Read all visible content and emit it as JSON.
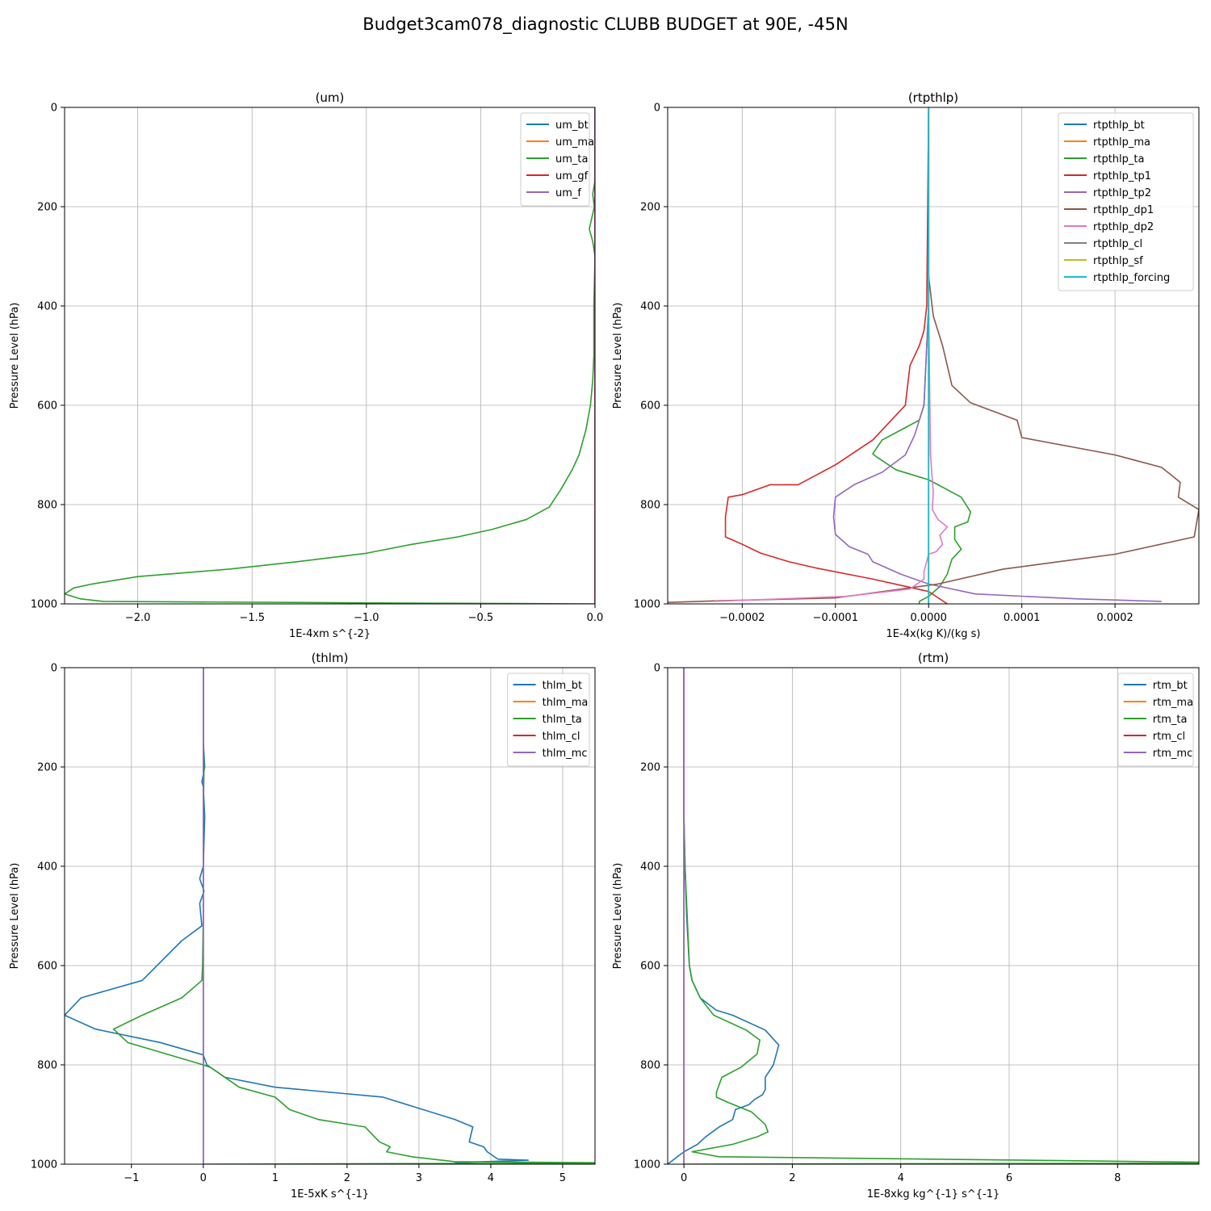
{
  "suptitle": "Budget3cam078_diagnostic CLUBB BUDGET at 90E, -45N",
  "series_colors": [
    "#1f77b4",
    "#ff7f0e",
    "#2ca02c",
    "#d62728",
    "#9467bd",
    "#8c564b",
    "#e377c2",
    "#7f7f7f",
    "#bcbd22",
    "#17becf"
  ],
  "chart_data": [
    {
      "type": "line",
      "title": "(um)",
      "xlabel": "1E-4xm s^{-2}",
      "ylabel": "Pressure Level (hPa)",
      "xlim": [
        -2.32,
        0.0
      ],
      "ylim": [
        1000,
        0
      ],
      "xticks": [
        -2.0,
        -1.5,
        -1.0,
        -0.5,
        0.0
      ],
      "xtick_labels": [
        "−2.0",
        "−1.5",
        "−1.0",
        "−0.5",
        "0.0"
      ],
      "yticks": [
        0,
        200,
        400,
        600,
        800,
        1000
      ],
      "ytick_labels": [
        "0",
        "200",
        "400",
        "600",
        "800",
        "1000"
      ],
      "grid": true,
      "legend_position": "upper-right",
      "series": [
        {
          "name": "um_bt",
          "color": "#1f77b4",
          "x": [
            0,
            0
          ],
          "y": [
            0,
            1000
          ]
        },
        {
          "name": "um_ma",
          "color": "#ff7f0e",
          "x": [
            0,
            0
          ],
          "y": [
            0,
            1000
          ]
        },
        {
          "name": "um_ta",
          "color": "#2ca02c",
          "x": [
            0,
            -0.001,
            -0.01,
            -0.003,
            -0.025,
            -0.01,
            0,
            -0.005,
            -0.005,
            -0.01,
            -0.02,
            -0.04,
            -0.07,
            -0.1,
            -0.15,
            -0.2,
            -0.3,
            -0.45,
            -0.6,
            -0.8,
            -1.0,
            -1.3,
            -1.6,
            -2.0,
            -2.2,
            -2.28,
            -2.32,
            -2.25,
            -2.15,
            -1.0,
            0
          ],
          "y": [
            0,
            150,
            175,
            200,
            245,
            270,
            300,
            400,
            500,
            550,
            600,
            650,
            700,
            730,
            770,
            805,
            830,
            850,
            865,
            880,
            898,
            915,
            930,
            945,
            960,
            968,
            980,
            990,
            995,
            998,
            1000
          ]
        },
        {
          "name": "um_gf",
          "color": "#d62728",
          "x": [
            0,
            0
          ],
          "y": [
            0,
            1000
          ]
        },
        {
          "name": "um_f",
          "color": "#9467bd",
          "x": [
            0,
            0
          ],
          "y": [
            0,
            1000
          ]
        }
      ]
    },
    {
      "type": "line",
      "title": "(rtpthlp)",
      "xlabel": "1E-4x(kg K)/(kg s)",
      "ylabel": "Pressure Level (hPa)",
      "xlim": [
        -0.00028,
        0.00029
      ],
      "ylim": [
        1000,
        0
      ],
      "xticks": [
        -0.0002,
        -0.0001,
        0.0,
        0.0001,
        0.0002
      ],
      "xtick_labels": [
        "−0.0002",
        "−0.0001",
        "0.0000",
        "0.0001",
        "0.0002"
      ],
      "yticks": [
        0,
        200,
        400,
        600,
        800,
        1000
      ],
      "ytick_labels": [
        "0",
        "200",
        "400",
        "600",
        "800",
        "1000"
      ],
      "grid": true,
      "legend_position": "upper-right",
      "series": [
        {
          "name": "rtpthlp_bt",
          "color": "#1f77b4",
          "x": [
            0,
            0
          ],
          "y": [
            0,
            1000
          ]
        },
        {
          "name": "rtpthlp_ma",
          "color": "#ff7f0e",
          "x": [
            0,
            0
          ],
          "y": [
            0,
            1000
          ]
        },
        {
          "name": "rtpthlp_ta",
          "color": "#2ca02c",
          "x": [
            0,
            0,
            -5e-06,
            -1e-05,
            -3e-05,
            -5e-05,
            -6e-05,
            -5.5e-05,
            -3.5e-05,
            0,
            3.5e-05,
            4.5e-05,
            4.2e-05,
            2.8e-05,
            2.8e-05,
            3.5e-05,
            2.5e-05,
            2e-05,
            1.2e-05,
            0,
            -1e-05,
            -1e-05
          ],
          "y": [
            0,
            400,
            600,
            630,
            650,
            670,
            698,
            705,
            730,
            750,
            785,
            815,
            835,
            845,
            870,
            890,
            910,
            940,
            965,
            985,
            995,
            1000
          ]
        },
        {
          "name": "rtpthlp_tp1",
          "color": "#d62728",
          "x": [
            0,
            -2e-06,
            -5e-06,
            -1e-05,
            -2e-05,
            -2.5e-05,
            -4e-05,
            -6e-05,
            -0.0001,
            -0.00014,
            -0.00017,
            -0.0002,
            -0.000215,
            -0.000218,
            -0.000218,
            -0.0002,
            -0.00018,
            -0.00015,
            -0.00012,
            -6e-05,
            0,
            2e-05
          ],
          "y": [
            0,
            400,
            450,
            480,
            520,
            600,
            630,
            670,
            720,
            760,
            760,
            780,
            785,
            825,
            865,
            880,
            898,
            915,
            928,
            950,
            975,
            1000
          ]
        },
        {
          "name": "rtpthlp_tp2",
          "color": "#9467bd",
          "x": [
            0,
            0,
            -5e-06,
            -1e-05,
            -1.5e-05,
            -2.5e-05,
            -5e-05,
            -8e-05,
            -0.0001,
            -0.000102,
            -0.0001,
            -8.5e-05,
            -6.5e-05,
            -6e-05,
            -3e-05,
            0,
            5e-05,
            0.00016,
            0.00025
          ],
          "y": [
            0,
            400,
            600,
            630,
            660,
            700,
            735,
            760,
            785,
            825,
            860,
            885,
            900,
            915,
            940,
            960,
            980,
            990,
            995
          ]
        },
        {
          "name": "rtpthlp_dp1",
          "color": "#8c564b",
          "x": [
            0,
            0,
            5e-06,
            1.5e-05,
            2.5e-05,
            4.5e-05,
            9.5e-05,
            0.0001,
            0.0002,
            0.00025,
            0.00027,
            0.000268,
            0.00029,
            0.000285,
            0.0002,
            0.00014,
            8e-05,
            1e-05,
            -0.0001,
            -0.00023,
            -0.00028,
            -0.0003
          ],
          "y": [
            0,
            340,
            420,
            480,
            560,
            595,
            630,
            665,
            700,
            725,
            755,
            785,
            810,
            865,
            900,
            915,
            930,
            960,
            988,
            994,
            997,
            998
          ]
        },
        {
          "name": "rtpthlp_dp2",
          "color": "#e377c2",
          "x": [
            0,
            0,
            2e-06,
            5e-06,
            4e-06,
            1e-05,
            2e-05,
            1.2e-05,
            1.5e-05,
            8e-06,
            0,
            -5e-06,
            -5e-06,
            -2e-05,
            -9e-05,
            -0.00023
          ],
          "y": [
            0,
            400,
            700,
            775,
            810,
            830,
            845,
            862,
            880,
            895,
            900,
            935,
            950,
            970,
            985,
            995
          ]
        },
        {
          "name": "rtpthlp_cl",
          "color": "#7f7f7f",
          "x": [
            0,
            0
          ],
          "y": [
            0,
            1000
          ]
        },
        {
          "name": "rtpthlp_sf",
          "color": "#bcbd22",
          "x": [
            0,
            0
          ],
          "y": [
            0,
            1000
          ]
        },
        {
          "name": "rtpthlp_forcing",
          "color": "#17becf",
          "x": [
            0,
            0
          ],
          "y": [
            0,
            1000
          ]
        }
      ]
    },
    {
      "type": "line",
      "title": "(thlm)",
      "xlabel": "1E-5xK s^{-1}",
      "ylabel": "Pressure Level (hPa)",
      "xlim": [
        -1.93,
        5.45
      ],
      "ylim": [
        1000,
        0
      ],
      "xticks": [
        -1,
        0,
        1,
        2,
        3,
        4,
        5
      ],
      "xtick_labels": [
        "−1",
        "0",
        "1",
        "2",
        "3",
        "4",
        "5"
      ],
      "yticks": [
        0,
        200,
        400,
        600,
        800,
        1000
      ],
      "ytick_labels": [
        "0",
        "200",
        "400",
        "600",
        "800",
        "1000"
      ],
      "grid": true,
      "legend_position": "upper-right",
      "series": [
        {
          "name": "thlm_bt",
          "color": "#1f77b4",
          "x": [
            0,
            0,
            0.02,
            -0.02,
            0,
            0.02,
            0,
            -0.05,
            0.01,
            -0.05,
            -0.02,
            -0.3,
            -0.85,
            -1.7,
            -1.93,
            -1.5,
            -0.6,
            0,
            0.05,
            0.3,
            1.0,
            2.5,
            3.5,
            3.75,
            3.7,
            3.9,
            3.95,
            4.1,
            4.52,
            3.5
          ],
          "y": [
            0,
            150,
            200,
            230,
            240,
            300,
            400,
            425,
            450,
            475,
            520,
            550,
            630,
            665,
            700,
            728,
            755,
            780,
            800,
            825,
            845,
            865,
            910,
            925,
            955,
            965,
            975,
            990,
            992,
            997
          ]
        },
        {
          "name": "thlm_ma",
          "color": "#ff7f0e",
          "x": [
            0,
            0
          ],
          "y": [
            0,
            1000
          ]
        },
        {
          "name": "thlm_ta",
          "color": "#2ca02c",
          "x": [
            0,
            0,
            0.01,
            0,
            0,
            0,
            -0.01,
            -0.02,
            -0.3,
            -0.85,
            -1.25,
            -1.05,
            0,
            0.1,
            0.5,
            1.0,
            1.2,
            1.6,
            2.25,
            2.45,
            2.6,
            2.55,
            2.9,
            3.5,
            5.45,
            5.45,
            0
          ],
          "y": [
            0,
            150,
            200,
            300,
            400,
            500,
            600,
            630,
            665,
            700,
            728,
            755,
            800,
            805,
            845,
            865,
            890,
            910,
            925,
            955,
            965,
            975,
            985,
            995,
            997,
            998,
            1000
          ]
        },
        {
          "name": "thlm_cl",
          "color": "#d62728",
          "x": [
            0,
            0
          ],
          "y": [
            0,
            1000
          ]
        },
        {
          "name": "thlm_mc",
          "color": "#9467bd",
          "x": [
            0,
            0
          ],
          "y": [
            0,
            1000
          ]
        }
      ]
    },
    {
      "type": "line",
      "title": "(rtm)",
      "xlabel": "1E-8xkg kg^{-1} s^{-1}",
      "ylabel": "Pressure Level (hPa)",
      "xlim": [
        -0.3,
        9.5
      ],
      "ylim": [
        1000,
        0
      ],
      "xticks": [
        0,
        2,
        4,
        6,
        8
      ],
      "xtick_labels": [
        "0",
        "2",
        "4",
        "6",
        "8"
      ],
      "yticks": [
        0,
        200,
        400,
        600,
        800,
        1000
      ],
      "ytick_labels": [
        "0",
        "200",
        "400",
        "600",
        "800",
        "1000"
      ],
      "grid": true,
      "legend_position": "upper-right",
      "series": [
        {
          "name": "rtm_bt",
          "color": "#1f77b4",
          "x": [
            0,
            0,
            0.02,
            0.05,
            0.1,
            0.15,
            0.3,
            0.6,
            0.9,
            1.5,
            1.75,
            1.65,
            1.5,
            1.5,
            1.45,
            1.3,
            1.2,
            0.95,
            0.9,
            0.65,
            0.4,
            0.25,
            0,
            -0.3
          ],
          "y": [
            0,
            300,
            400,
            500,
            600,
            630,
            665,
            690,
            700,
            730,
            760,
            800,
            825,
            850,
            860,
            870,
            880,
            890,
            910,
            925,
            945,
            960,
            975,
            1000
          ]
        },
        {
          "name": "rtm_ma",
          "color": "#ff7f0e",
          "x": [
            0,
            0
          ],
          "y": [
            0,
            1000
          ]
        },
        {
          "name": "rtm_ta",
          "color": "#2ca02c",
          "x": [
            0,
            0,
            0.02,
            0.06,
            0.1,
            0.15,
            0.3,
            0.55,
            1.15,
            1.4,
            1.35,
            1.05,
            0.7,
            0.6,
            0.6,
            0.8,
            1.25,
            1.5,
            1.55,
            1.35,
            0.9,
            0.15,
            0.65,
            9.5,
            9.5,
            0
          ],
          "y": [
            0,
            300,
            400,
            500,
            600,
            630,
            665,
            700,
            730,
            750,
            778,
            805,
            825,
            855,
            865,
            875,
            895,
            920,
            935,
            945,
            960,
            975,
            985,
            996,
            998,
            1000
          ]
        },
        {
          "name": "rtm_cl",
          "color": "#d62728",
          "x": [
            0,
            0
          ],
          "y": [
            0,
            1000
          ]
        },
        {
          "name": "rtm_mc",
          "color": "#9467bd",
          "x": [
            0,
            0
          ],
          "y": [
            0,
            1000
          ]
        }
      ]
    }
  ]
}
